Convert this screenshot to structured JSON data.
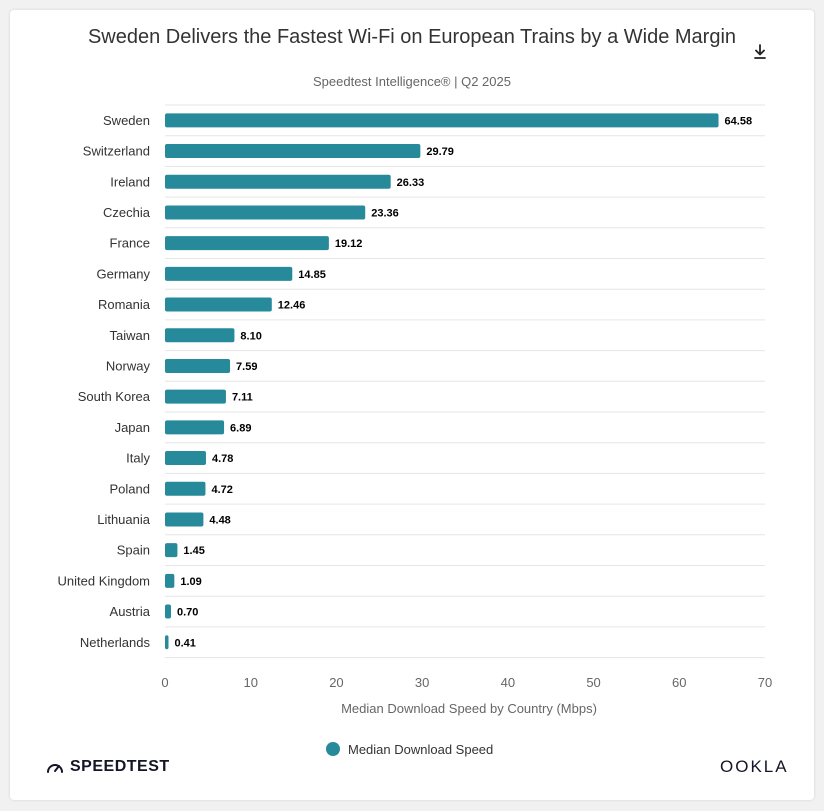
{
  "header": {
    "title": "Sweden Delivers the Fastest Wi-Fi on European Trains by a Wide Margin",
    "subtitle": "Speedtest Intelligence® | Q2 2025",
    "download_icon": "download-icon"
  },
  "legend": {
    "label": "Median Download Speed"
  },
  "footer": {
    "left_brand": "SPEEDTEST",
    "left_brand_icon": "speedtest-gauge-icon",
    "right_brand": "OOKLA"
  },
  "colors": {
    "bar": "#278a9b",
    "grid": "#e6e6e6",
    "text": "#333333",
    "muted": "#666666"
  },
  "chart_data": {
    "type": "bar",
    "orientation": "horizontal",
    "categories": [
      "Sweden",
      "Switzerland",
      "Ireland",
      "Czechia",
      "France",
      "Germany",
      "Romania",
      "Taiwan",
      "Norway",
      "South Korea",
      "Japan",
      "Italy",
      "Poland",
      "Lithuania",
      "Spain",
      "United Kingdom",
      "Austria",
      "Netherlands"
    ],
    "series": [
      {
        "name": "Median Download Speed",
        "values": [
          64.58,
          29.79,
          26.33,
          23.36,
          19.12,
          14.85,
          12.46,
          8.1,
          7.59,
          7.11,
          6.89,
          4.78,
          4.72,
          4.48,
          1.45,
          1.09,
          0.7,
          0.41
        ],
        "labels": [
          "64.58",
          "29.79",
          "26.33",
          "23.36",
          "19.12",
          "14.85",
          "12.46",
          "8.10",
          "7.59",
          "7.11",
          "6.89",
          "4.78",
          "4.72",
          "4.48",
          "1.45",
          "1.09",
          "0.70",
          "0.41"
        ]
      }
    ],
    "xlabel": "Median Download Speed by Country (Mbps)",
    "xlim": [
      0,
      70
    ],
    "xticks": [
      "0",
      "10",
      "20",
      "30",
      "40",
      "50",
      "60",
      "70"
    ],
    "grid": true,
    "legend_position": "bottom-center"
  }
}
